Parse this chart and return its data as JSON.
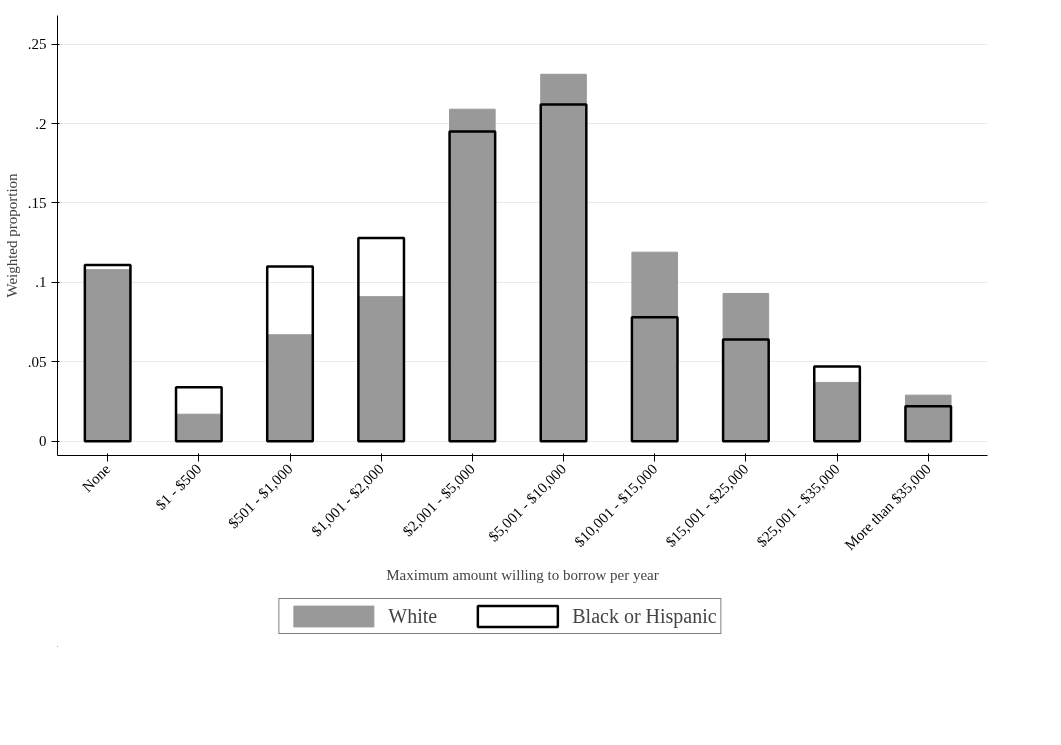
{
  "chart_data": {
    "type": "bar",
    "xlabel": "Maximum amount willing to borrow per year",
    "ylabel": "Weighted proportion",
    "categories": [
      "None",
      "$1 - $500",
      "$501 - $1,000",
      "$1,001 - $2,000",
      "$2,001 - $5,000",
      "$5,001 - $10,000",
      "$10,001 - $15,000",
      "$15,001 - $25,000",
      "$25,001 - $35,000",
      "More than $35,000"
    ],
    "series": [
      {
        "name": "White",
        "color": "#999999",
        "values": [
          0.108,
          0.017,
          0.067,
          0.091,
          0.209,
          0.231,
          0.119,
          0.093,
          0.037,
          0.029
        ]
      },
      {
        "name": "Black or Hispanic",
        "color": "#000000",
        "values": [
          0.111,
          0.034,
          0.11,
          0.128,
          0.195,
          0.212,
          0.078,
          0.064,
          0.047,
          0.022
        ]
      }
    ],
    "ylim": [
      -0.009,
      0.268
    ],
    "yticks": [
      0,
      {
        "value": 0.05,
        "label": ".05"
      },
      {
        "value": 0.1,
        "label": ".1"
      },
      {
        "value": 0.15,
        "label": ".15"
      },
      {
        "value": 0.2,
        "label": ".2"
      },
      {
        "value": 0.25,
        "label": ".25"
      }
    ],
    "grid": "y",
    "legend": "bottom"
  }
}
